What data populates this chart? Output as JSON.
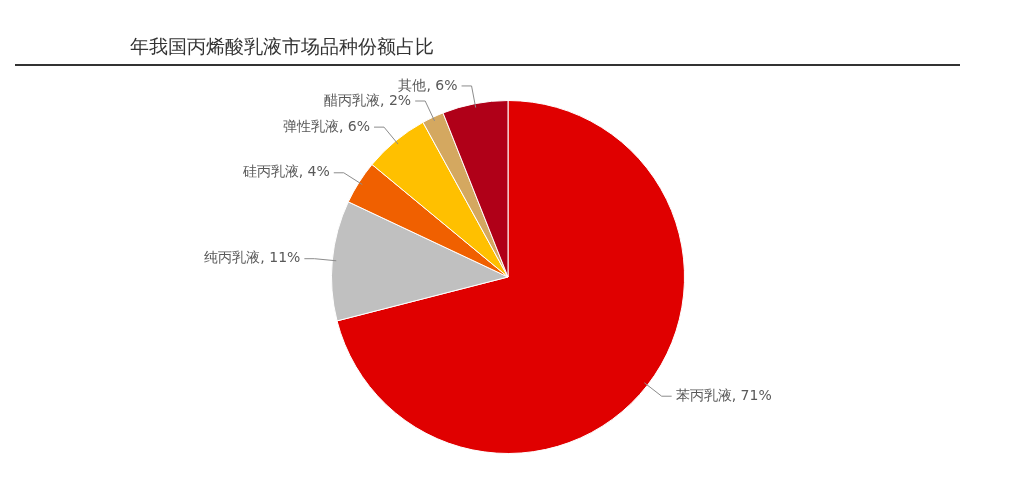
{
  "chart_data": {
    "type": "pie",
    "title": "年我国丙烯酸乳液市场品种份额占比",
    "categories": [
      "苯丙乳液",
      "纯丙乳液",
      "硅丙乳液",
      "弹性乳液",
      "醋丙乳液",
      "其他"
    ],
    "values": [
      71,
      11,
      4,
      6,
      2,
      6
    ],
    "colors": [
      "#e00000",
      "#c0c0c0",
      "#f06000",
      "#ffc000",
      "#d4a860",
      "#b00018"
    ],
    "value_labels": [
      "71%",
      "11%",
      "4%",
      "6%",
      "2%",
      "6%"
    ]
  }
}
